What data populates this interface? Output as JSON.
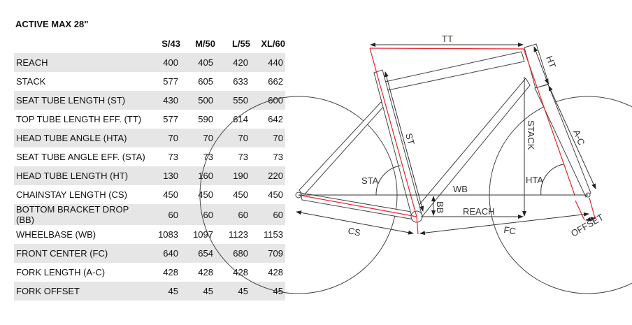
{
  "title": "ACTIVE MAX 28\"",
  "table": {
    "columns": [
      "S/43",
      "M/50",
      "L/55",
      "XL/60"
    ],
    "rows": [
      {
        "label": "REACH",
        "values": [
          "400",
          "405",
          "420",
          "440"
        ]
      },
      {
        "label": "STACK",
        "values": [
          "577",
          "605",
          "633",
          "662"
        ]
      },
      {
        "label": "SEAT TUBE LENGTH (ST)",
        "values": [
          "430",
          "500",
          "550",
          "600"
        ]
      },
      {
        "label": "TOP TUBE LENGTH EFF. (TT)",
        "values": [
          "577",
          "590",
          "614",
          "642"
        ]
      },
      {
        "label": "HEAD TUBE ANGLE (HTA)",
        "values": [
          "70",
          "70",
          "70",
          "70"
        ]
      },
      {
        "label": "SEAT TUBE ANGLE EFF. (STA)",
        "values": [
          "73",
          "73",
          "73",
          "73"
        ]
      },
      {
        "label": "HEAD TUBE LENGTH (HT)",
        "values": [
          "130",
          "160",
          "190",
          "220"
        ]
      },
      {
        "label": "CHAINSTAY LENGTH (CS)",
        "values": [
          "450",
          "450",
          "450",
          "450"
        ]
      },
      {
        "label": "BOTTOM BRACKET DROP (BB)",
        "values": [
          "60",
          "60",
          "60",
          "60"
        ]
      },
      {
        "label": "WHEELBASE (WB)",
        "values": [
          "1083",
          "1097",
          "1123",
          "1153"
        ]
      },
      {
        "label": "FRONT CENTER (FC)",
        "values": [
          "640",
          "654",
          "680",
          "709"
        ]
      },
      {
        "label": "FORK LENGTH (A-C)",
        "values": [
          "428",
          "428",
          "428",
          "428"
        ]
      },
      {
        "label": "FORK OFFSET",
        "values": [
          "45",
          "45",
          "45",
          "45"
        ]
      }
    ]
  },
  "diagram": {
    "labels": {
      "tt": "TT",
      "ht": "HT",
      "st": "ST",
      "stack": "STACK",
      "ac": "A-C",
      "sta": "STA",
      "hta": "HTA",
      "wb": "WB",
      "bb": "BB",
      "reach": "REACH",
      "cs": "CS",
      "fc": "FC",
      "offset": "OFFSET"
    },
    "colors": {
      "frame": "#444444",
      "geometry": "#e8252b",
      "row_shade": "#e6e6e6"
    }
  }
}
